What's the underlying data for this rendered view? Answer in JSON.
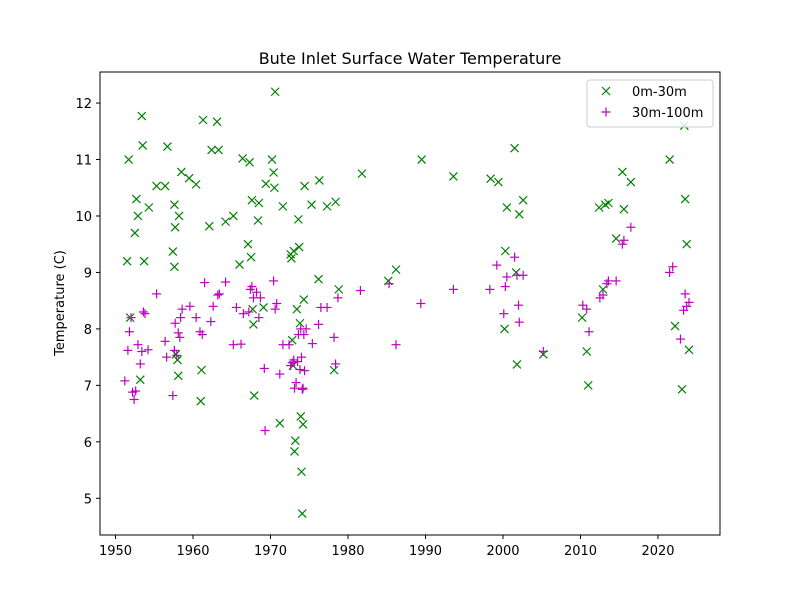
{
  "chart_data": {
    "type": "scatter",
    "title": "Bute Inlet Surface Water Temperature",
    "xlabel": "",
    "ylabel": "Temperature (C)",
    "xlim": [
      1948,
      2028
    ],
    "ylim": [
      4.35,
      12.55
    ],
    "xticks": [
      1950,
      1960,
      1970,
      1980,
      1990,
      2000,
      2010,
      2020
    ],
    "yticks": [
      5,
      6,
      7,
      8,
      9,
      10,
      11,
      12
    ],
    "grid": false,
    "legend_position": "top-right",
    "series": [
      {
        "name": "0m-30m",
        "marker": "x",
        "color": "#008000",
        "points": [
          [
            1951.5,
            9.2
          ],
          [
            1951.7,
            11.0
          ],
          [
            1951.9,
            8.2
          ],
          [
            1952.5,
            9.7
          ],
          [
            1952.7,
            10.3
          ],
          [
            1952.9,
            10.0
          ],
          [
            1953.2,
            7.1
          ],
          [
            1953.4,
            11.77
          ],
          [
            1953.5,
            11.25
          ],
          [
            1953.7,
            9.2
          ],
          [
            1954.3,
            10.15
          ],
          [
            1955.3,
            10.53
          ],
          [
            1956.4,
            10.53
          ],
          [
            1956.7,
            11.23
          ],
          [
            1957.4,
            9.37
          ],
          [
            1957.6,
            10.2
          ],
          [
            1957.6,
            9.1
          ],
          [
            1957.7,
            9.8
          ],
          [
            1957.8,
            7.55
          ],
          [
            1958.0,
            7.45
          ],
          [
            1958.1,
            7.17
          ],
          [
            1958.2,
            10.0
          ],
          [
            1958.5,
            10.78
          ],
          [
            1959.5,
            10.67
          ],
          [
            1960.4,
            10.56
          ],
          [
            1961.0,
            6.72
          ],
          [
            1961.1,
            7.27
          ],
          [
            1961.3,
            11.7
          ],
          [
            1962.1,
            9.82
          ],
          [
            1962.4,
            11.17
          ],
          [
            1963.1,
            11.67
          ],
          [
            1963.3,
            11.17
          ],
          [
            1964.2,
            9.9
          ],
          [
            1965.2,
            10.0
          ],
          [
            1966.0,
            9.14
          ],
          [
            1966.4,
            11.02
          ],
          [
            1967.1,
            9.5
          ],
          [
            1967.3,
            10.95
          ],
          [
            1967.5,
            9.27
          ],
          [
            1967.6,
            10.28
          ],
          [
            1967.7,
            8.35
          ],
          [
            1967.8,
            8.08
          ],
          [
            1967.9,
            6.82
          ],
          [
            1968.4,
            9.92
          ],
          [
            1968.5,
            10.23
          ],
          [
            1969.1,
            8.38
          ],
          [
            1969.4,
            10.57
          ],
          [
            1970.2,
            11.0
          ],
          [
            1970.4,
            10.77
          ],
          [
            1970.5,
            10.5
          ],
          [
            1970.6,
            12.2
          ],
          [
            1971.2,
            6.33
          ],
          [
            1971.6,
            10.17
          ],
          [
            1972.6,
            9.32
          ],
          [
            1972.7,
            9.25
          ],
          [
            1972.8,
            7.8
          ],
          [
            1972.9,
            7.35
          ],
          [
            1973.0,
            9.38
          ],
          [
            1973.1,
            5.83
          ],
          [
            1973.2,
            6.02
          ],
          [
            1973.4,
            8.35
          ],
          [
            1973.6,
            9.94
          ],
          [
            1973.7,
            9.45
          ],
          [
            1973.8,
            8.1
          ],
          [
            1973.9,
            6.45
          ],
          [
            1974.0,
            5.47
          ],
          [
            1974.1,
            4.73
          ],
          [
            1974.2,
            6.31
          ],
          [
            1974.3,
            8.52
          ],
          [
            1974.4,
            10.53
          ],
          [
            1975.3,
            10.2
          ],
          [
            1976.2,
            8.88
          ],
          [
            1976.3,
            10.63
          ],
          [
            1977.3,
            10.17
          ],
          [
            1978.2,
            7.27
          ],
          [
            1978.4,
            10.25
          ],
          [
            1978.8,
            8.7
          ],
          [
            1981.8,
            10.75
          ],
          [
            1985.2,
            8.85
          ],
          [
            1986.2,
            9.05
          ],
          [
            1989.5,
            11.0
          ],
          [
            1993.6,
            10.7
          ],
          [
            1998.4,
            10.66
          ],
          [
            1999.4,
            10.6
          ],
          [
            2000.2,
            8.0
          ],
          [
            2000.3,
            9.38
          ],
          [
            2000.5,
            10.15
          ],
          [
            2001.5,
            11.2
          ],
          [
            2001.7,
            9.0
          ],
          [
            2001.8,
            7.37
          ],
          [
            2002.1,
            10.03
          ],
          [
            2002.6,
            10.28
          ],
          [
            2005.2,
            7.55
          ],
          [
            2010.2,
            8.2
          ],
          [
            2010.8,
            7.6
          ],
          [
            2011.0,
            7.0
          ],
          [
            2012.4,
            10.15
          ],
          [
            2012.9,
            8.7
          ],
          [
            2013.2,
            10.2
          ],
          [
            2013.6,
            10.23
          ],
          [
            2014.6,
            9.6
          ],
          [
            2015.4,
            10.78
          ],
          [
            2015.6,
            10.12
          ],
          [
            2016.5,
            10.6
          ],
          [
            2021.5,
            11.0
          ],
          [
            2022.2,
            8.05
          ],
          [
            2023.1,
            6.93
          ],
          [
            2023.4,
            11.6
          ],
          [
            2023.5,
            10.3
          ],
          [
            2023.7,
            9.5
          ],
          [
            2024.0,
            7.63
          ]
        ]
      },
      {
        "name": "30m-100m",
        "marker": "+",
        "color": "#bf00bf",
        "points": [
          [
            1951.2,
            7.08
          ],
          [
            1951.6,
            7.62
          ],
          [
            1951.8,
            7.95
          ],
          [
            1952.0,
            8.2
          ],
          [
            1952.2,
            6.88
          ],
          [
            1952.4,
            6.75
          ],
          [
            1952.6,
            6.9
          ],
          [
            1952.9,
            7.72
          ],
          [
            1953.2,
            7.38
          ],
          [
            1953.4,
            7.6
          ],
          [
            1953.6,
            8.3
          ],
          [
            1953.8,
            8.27
          ],
          [
            1954.2,
            7.63
          ],
          [
            1955.3,
            8.62
          ],
          [
            1956.4,
            7.78
          ],
          [
            1956.6,
            7.5
          ],
          [
            1957.4,
            6.82
          ],
          [
            1957.6,
            7.62
          ],
          [
            1957.7,
            8.1
          ],
          [
            1957.9,
            7.53
          ],
          [
            1958.1,
            7.93
          ],
          [
            1958.3,
            7.85
          ],
          [
            1958.4,
            8.2
          ],
          [
            1958.6,
            8.35
          ],
          [
            1959.6,
            8.4
          ],
          [
            1960.4,
            8.2
          ],
          [
            1960.9,
            7.95
          ],
          [
            1961.2,
            7.9
          ],
          [
            1961.5,
            8.82
          ],
          [
            1962.3,
            8.13
          ],
          [
            1962.6,
            8.4
          ],
          [
            1963.2,
            8.6
          ],
          [
            1963.4,
            8.62
          ],
          [
            1964.2,
            8.83
          ],
          [
            1965.2,
            7.72
          ],
          [
            1965.6,
            8.38
          ],
          [
            1966.2,
            7.73
          ],
          [
            1966.5,
            8.27
          ],
          [
            1967.2,
            8.3
          ],
          [
            1967.4,
            8.7
          ],
          [
            1967.6,
            8.75
          ],
          [
            1967.8,
            8.55
          ],
          [
            1968.2,
            8.65
          ],
          [
            1968.5,
            8.2
          ],
          [
            1968.7,
            8.55
          ],
          [
            1969.2,
            7.3
          ],
          [
            1969.3,
            6.2
          ],
          [
            1970.4,
            8.85
          ],
          [
            1970.6,
            8.35
          ],
          [
            1970.8,
            8.45
          ],
          [
            1971.2,
            7.2
          ],
          [
            1971.6,
            7.72
          ],
          [
            1972.4,
            7.72
          ],
          [
            1972.6,
            7.35
          ],
          [
            1972.8,
            7.4
          ],
          [
            1973.0,
            7.45
          ],
          [
            1973.1,
            6.95
          ],
          [
            1973.3,
            7.05
          ],
          [
            1973.5,
            7.42
          ],
          [
            1973.6,
            7.9
          ],
          [
            1973.8,
            7.28
          ],
          [
            1973.9,
            8.0
          ],
          [
            1974.0,
            7.5
          ],
          [
            1974.1,
            6.93
          ],
          [
            1974.2,
            6.95
          ],
          [
            1974.3,
            7.9
          ],
          [
            1974.4,
            7.26
          ],
          [
            1974.6,
            8.0
          ],
          [
            1975.4,
            7.74
          ],
          [
            1976.2,
            8.08
          ],
          [
            1976.5,
            8.38
          ],
          [
            1977.3,
            8.38
          ],
          [
            1978.2,
            7.85
          ],
          [
            1978.4,
            7.38
          ],
          [
            1978.7,
            8.55
          ],
          [
            1981.6,
            8.68
          ],
          [
            1985.3,
            8.8
          ],
          [
            1986.2,
            7.72
          ],
          [
            1989.4,
            8.45
          ],
          [
            1993.6,
            8.7
          ],
          [
            1998.3,
            8.7
          ],
          [
            1999.2,
            9.13
          ],
          [
            2000.1,
            8.27
          ],
          [
            2000.3,
            8.75
          ],
          [
            2000.5,
            8.92
          ],
          [
            2001.5,
            9.27
          ],
          [
            2001.8,
            8.95
          ],
          [
            2002.0,
            8.42
          ],
          [
            2002.1,
            8.12
          ],
          [
            2002.6,
            8.95
          ],
          [
            2005.2,
            7.6
          ],
          [
            2010.3,
            8.42
          ],
          [
            2010.8,
            8.35
          ],
          [
            2011.1,
            7.95
          ],
          [
            2012.5,
            8.55
          ],
          [
            2012.9,
            8.6
          ],
          [
            2013.4,
            8.8
          ],
          [
            2013.6,
            8.85
          ],
          [
            2014.6,
            8.85
          ],
          [
            2015.4,
            9.5
          ],
          [
            2015.6,
            9.57
          ],
          [
            2016.5,
            9.8
          ],
          [
            2021.5,
            9.0
          ],
          [
            2021.9,
            9.1
          ],
          [
            2022.9,
            7.82
          ],
          [
            2023.3,
            8.33
          ],
          [
            2023.5,
            8.62
          ],
          [
            2023.7,
            8.4
          ],
          [
            2024.0,
            8.47
          ]
        ]
      }
    ]
  }
}
